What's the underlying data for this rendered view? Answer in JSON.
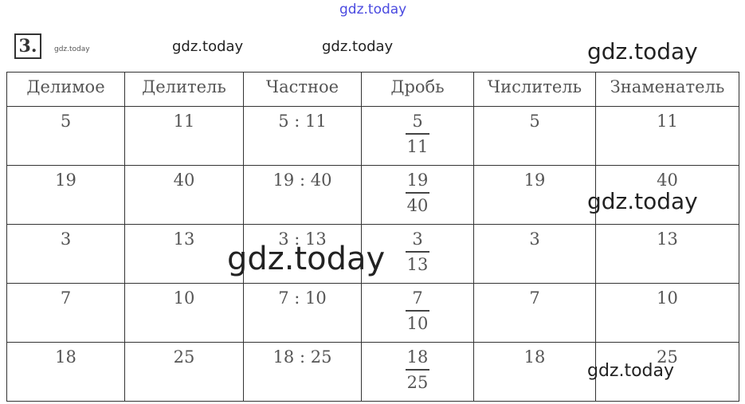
{
  "exercise_number": "3.",
  "watermark": "gdz.today",
  "table": {
    "headers": [
      "Делимое",
      "Делитель",
      "Частное",
      "Дробь",
      "Числитель",
      "Знаменатель"
    ],
    "rows": [
      {
        "dividend": "5",
        "divisor": "11",
        "quotient": "5 : 11",
        "fraction_num": "5",
        "fraction_den": "11",
        "numerator": "5",
        "denominator": "11"
      },
      {
        "dividend": "19",
        "divisor": "40",
        "quotient": "19 : 40",
        "fraction_num": "19",
        "fraction_den": "40",
        "numerator": "19",
        "denominator": "40"
      },
      {
        "dividend": "3",
        "divisor": "13",
        "quotient": "3 : 13",
        "fraction_num": "3",
        "fraction_den": "13",
        "numerator": "3",
        "denominator": "13"
      },
      {
        "dividend": "7",
        "divisor": "10",
        "quotient": "7 : 10",
        "fraction_num": "7",
        "fraction_den": "10",
        "numerator": "7",
        "denominator": "10"
      },
      {
        "dividend": "18",
        "divisor": "25",
        "quotient": "18 : 25",
        "fraction_num": "18",
        "fraction_den": "25",
        "numerator": "18",
        "denominator": "25"
      }
    ]
  }
}
